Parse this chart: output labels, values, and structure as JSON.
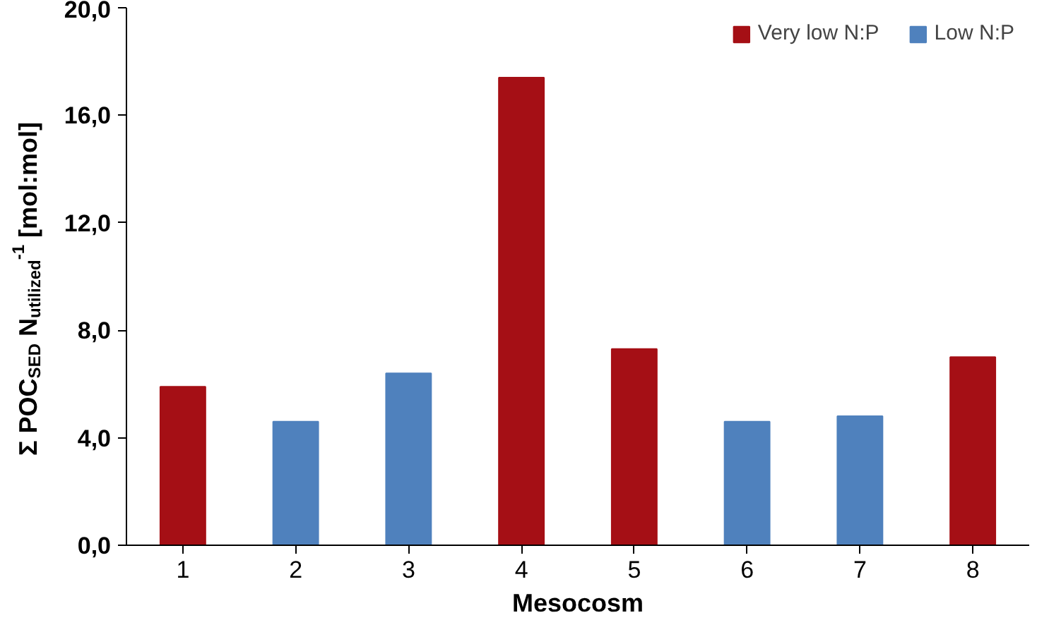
{
  "chart_data": {
    "type": "bar",
    "xlabel": "Mesocosm",
    "ylabel": "Σ POC$_{SED}$ N$_{utilized}$$^{-1}$ [mol:mol]",
    "categories": [
      "1",
      "2",
      "3",
      "4",
      "5",
      "6",
      "7",
      "8"
    ],
    "series": [
      {
        "name": "Very low N:P",
        "color": "#a50f15",
        "values": [
          5.9,
          null,
          null,
          17.4,
          7.3,
          null,
          null,
          7.0
        ]
      },
      {
        "name": "Low N:P",
        "color": "#4f81bd",
        "values": [
          null,
          4.6,
          6.4,
          null,
          null,
          4.6,
          4.8,
          null
        ]
      }
    ],
    "ylim": [
      0,
      20
    ],
    "yticks": [
      {
        "value": 0,
        "label": "0,0"
      },
      {
        "value": 4,
        "label": "4,0"
      },
      {
        "value": 8,
        "label": "8,0"
      },
      {
        "value": 12,
        "label": "12,0"
      },
      {
        "value": 16,
        "label": "16,0"
      },
      {
        "value": 20,
        "label": "20,0"
      }
    ],
    "grid": false,
    "legend": "top right"
  }
}
